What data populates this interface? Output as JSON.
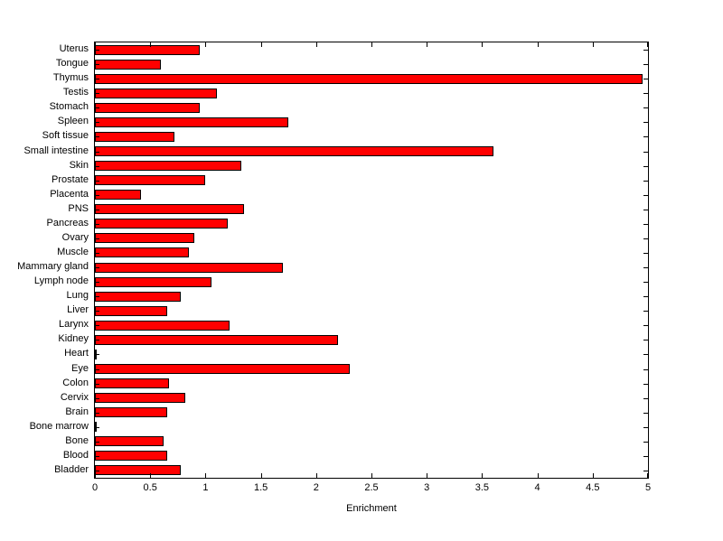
{
  "chart_data": {
    "type": "bar",
    "orientation": "horizontal",
    "title": "",
    "xlabel": "Enrichment",
    "ylabel": "",
    "xlim": [
      0,
      5
    ],
    "xticks": [
      0,
      0.5,
      1,
      1.5,
      2,
      2.5,
      3,
      3.5,
      4,
      4.5,
      5
    ],
    "xtick_labels": [
      "0",
      "0.5",
      "1",
      "1.5",
      "2",
      "2.5",
      "3",
      "3.5",
      "4",
      "4.5",
      "5"
    ],
    "grid": false,
    "legend": false,
    "bar_color": "#ff0000",
    "bar_edge_color": "#000000",
    "categories": [
      "Uterus",
      "Tongue",
      "Thymus",
      "Testis",
      "Stomach",
      "Spleen",
      "Soft tissue",
      "Small intestine",
      "Skin",
      "Prostate",
      "Placenta",
      "PNS",
      "Pancreas",
      "Ovary",
      "Muscle",
      "Mammary gland",
      "Lymph node",
      "Lung",
      "Liver",
      "Larynx",
      "Kidney",
      "Heart",
      "Eye",
      "Colon",
      "Cervix",
      "Brain",
      "Bone marrow",
      "Bone",
      "Blood",
      "Bladder"
    ],
    "values": [
      0.95,
      0.6,
      4.95,
      1.1,
      0.95,
      1.75,
      0.72,
      3.6,
      1.32,
      1.0,
      0.42,
      1.35,
      1.2,
      0.9,
      0.85,
      1.7,
      1.05,
      0.78,
      0.65,
      1.22,
      2.2,
      0.02,
      2.3,
      0.67,
      0.82,
      0.65,
      0.02,
      0.62,
      0.65,
      0.78
    ]
  }
}
